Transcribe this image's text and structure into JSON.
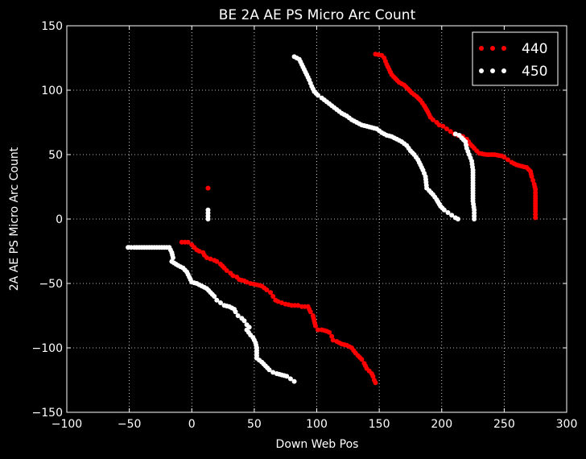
{
  "chart_data": {
    "type": "scatter",
    "title": "BE 2A AE PS Micro Arc Count",
    "xlabel": "Down Web Pos",
    "ylabel": "2A AE PS Micro Arc Count",
    "xlim": [
      -100,
      300
    ],
    "ylim": [
      -150,
      150
    ],
    "xticks": [
      -100,
      -50,
      0,
      50,
      100,
      150,
      200,
      250,
      300
    ],
    "yticks": [
      -150,
      -100,
      -50,
      0,
      50,
      100,
      150
    ],
    "xtick_labels": [
      "−100",
      "−50",
      "0",
      "50",
      "100",
      "150",
      "200",
      "250",
      "300"
    ],
    "ytick_labels": [
      "−150",
      "−100",
      "−50",
      "0",
      "50",
      "100",
      "150"
    ],
    "grid": true,
    "legend_position": "top-right",
    "background": "#000000",
    "series": [
      {
        "name": "440",
        "color": "#ff0000",
        "points": [
          [
            -8,
            -18
          ],
          [
            -3,
            -18
          ],
          [
            0,
            -20
          ],
          [
            2,
            -22
          ],
          [
            4,
            -24
          ],
          [
            6,
            -25
          ],
          [
            9,
            -26
          ],
          [
            10,
            -28
          ],
          [
            12,
            -30
          ],
          [
            15,
            -31
          ],
          [
            18,
            -32
          ],
          [
            20,
            -33
          ],
          [
            23,
            -35
          ],
          [
            26,
            -38
          ],
          [
            28,
            -40
          ],
          [
            31,
            -42
          ],
          [
            33,
            -44
          ],
          [
            36,
            -45
          ],
          [
            38,
            -47
          ],
          [
            42,
            -48
          ],
          [
            44,
            -49
          ],
          [
            47,
            -50
          ],
          [
            52,
            -51
          ],
          [
            56,
            -52
          ],
          [
            60,
            -55
          ],
          [
            63,
            -57
          ],
          [
            65,
            -60
          ],
          [
            67,
            -63
          ],
          [
            69,
            -64
          ],
          [
            72,
            -65
          ],
          [
            75,
            -66
          ],
          [
            80,
            -67
          ],
          [
            85,
            -67
          ],
          [
            88,
            -68
          ],
          [
            93,
            -68
          ],
          [
            95,
            -72
          ],
          [
            97,
            -75
          ],
          [
            98,
            -79
          ],
          [
            99,
            -83
          ],
          [
            101,
            -86
          ],
          [
            104,
            -86
          ],
          [
            108,
            -87
          ],
          [
            110,
            -88
          ],
          [
            112,
            -91
          ],
          [
            113,
            -94
          ],
          [
            116,
            -95
          ],
          [
            120,
            -97
          ],
          [
            124,
            -98
          ],
          [
            128,
            -100
          ],
          [
            131,
            -104
          ],
          [
            133,
            -106
          ],
          [
            136,
            -109
          ],
          [
            138,
            -112
          ],
          [
            140,
            -116
          ],
          [
            142,
            -118
          ],
          [
            144,
            -120
          ],
          [
            145,
            -122
          ],
          [
            146,
            -125
          ],
          [
            147,
            -127
          ],
          [
            147,
            128
          ],
          [
            152,
            127
          ],
          [
            154,
            125
          ],
          [
            156,
            120
          ],
          [
            158,
            116
          ],
          [
            160,
            112
          ],
          [
            163,
            109
          ],
          [
            166,
            106
          ],
          [
            170,
            104
          ],
          [
            173,
            101
          ],
          [
            176,
            98
          ],
          [
            180,
            95
          ],
          [
            183,
            92
          ],
          [
            186,
            88
          ],
          [
            189,
            83
          ],
          [
            191,
            79
          ],
          [
            193,
            77
          ],
          [
            196,
            75
          ],
          [
            198,
            73
          ],
          [
            201,
            72
          ],
          [
            204,
            70
          ],
          [
            207,
            68
          ],
          [
            210,
            66
          ],
          [
            213,
            65
          ],
          [
            217,
            64
          ],
          [
            220,
            62
          ],
          [
            223,
            58
          ],
          [
            226,
            55
          ],
          [
            230,
            51
          ],
          [
            236,
            50
          ],
          [
            242,
            50
          ],
          [
            248,
            49
          ],
          [
            250,
            48
          ],
          [
            253,
            46
          ],
          [
            256,
            44
          ],
          [
            260,
            42
          ],
          [
            264,
            41
          ],
          [
            268,
            40
          ],
          [
            271,
            37
          ],
          [
            272,
            33
          ],
          [
            273,
            30
          ],
          [
            274,
            27
          ],
          [
            275,
            23
          ],
          [
            275,
            18
          ],
          [
            275,
            12
          ],
          [
            275,
            6
          ],
          [
            275,
            1
          ],
          [
            13,
            24
          ]
        ]
      },
      {
        "name": "450",
        "color": "#ffffff",
        "points": [
          [
            -51,
            -22
          ],
          [
            -46,
            -22
          ],
          [
            -42,
            -22
          ],
          [
            -38,
            -22
          ],
          [
            -34,
            -22
          ],
          [
            -30,
            -22
          ],
          [
            -26,
            -22
          ],
          [
            -22,
            -22
          ],
          [
            -18,
            -22
          ],
          [
            -16,
            -26
          ],
          [
            -15,
            -30
          ],
          [
            -16,
            -33
          ],
          [
            -11,
            -36
          ],
          [
            -7,
            -38
          ],
          [
            -4,
            -41
          ],
          [
            -2,
            -45
          ],
          [
            0,
            -49
          ],
          [
            4,
            -50
          ],
          [
            8,
            -52
          ],
          [
            12,
            -54
          ],
          [
            15,
            -57
          ],
          [
            18,
            -60
          ],
          [
            20,
            -63
          ],
          [
            23,
            -65
          ],
          [
            26,
            -67
          ],
          [
            30,
            -68
          ],
          [
            34,
            -70
          ],
          [
            35,
            -72
          ],
          [
            37,
            -75
          ],
          [
            40,
            -77
          ],
          [
            42,
            -79
          ],
          [
            44,
            -82
          ],
          [
            46,
            -84
          ],
          [
            44,
            -86
          ],
          [
            47,
            -90
          ],
          [
            49,
            -92
          ],
          [
            51,
            -96
          ],
          [
            52,
            -100
          ],
          [
            52,
            -108
          ],
          [
            56,
            -111
          ],
          [
            59,
            -114
          ],
          [
            62,
            -117
          ],
          [
            65,
            -119
          ],
          [
            68,
            -120
          ],
          [
            72,
            -121
          ],
          [
            76,
            -122
          ],
          [
            79,
            -124
          ],
          [
            82,
            -126
          ],
          [
            13,
            0
          ],
          [
            13,
            7
          ],
          [
            82,
            126
          ],
          [
            86,
            124
          ],
          [
            88,
            120
          ],
          [
            90,
            116
          ],
          [
            92,
            112
          ],
          [
            94,
            108
          ],
          [
            96,
            103
          ],
          [
            98,
            99
          ],
          [
            101,
            96
          ],
          [
            104,
            94
          ],
          [
            108,
            91
          ],
          [
            112,
            88
          ],
          [
            116,
            85
          ],
          [
            120,
            82
          ],
          [
            124,
            80
          ],
          [
            128,
            77
          ],
          [
            132,
            75
          ],
          [
            136,
            73
          ],
          [
            140,
            72
          ],
          [
            144,
            71
          ],
          [
            148,
            70
          ],
          [
            152,
            67
          ],
          [
            156,
            65
          ],
          [
            160,
            64
          ],
          [
            164,
            62
          ],
          [
            168,
            60
          ],
          [
            172,
            57
          ],
          [
            175,
            53
          ],
          [
            178,
            50
          ],
          [
            181,
            46
          ],
          [
            183,
            42
          ],
          [
            185,
            38
          ],
          [
            187,
            33
          ],
          [
            188,
            24
          ],
          [
            190,
            22
          ],
          [
            193,
            19
          ],
          [
            196,
            15
          ],
          [
            199,
            10
          ],
          [
            202,
            7
          ],
          [
            205,
            5
          ],
          [
            208,
            3
          ],
          [
            211,
            1
          ],
          [
            213,
            0
          ],
          [
            211,
            66
          ],
          [
            214,
            65
          ],
          [
            216,
            63
          ],
          [
            219,
            60
          ],
          [
            220,
            55
          ],
          [
            222,
            50
          ],
          [
            224,
            45
          ],
          [
            225,
            38
          ],
          [
            225,
            30
          ],
          [
            225,
            22
          ],
          [
            225,
            14
          ],
          [
            226,
            7
          ],
          [
            226,
            0
          ]
        ]
      }
    ]
  }
}
